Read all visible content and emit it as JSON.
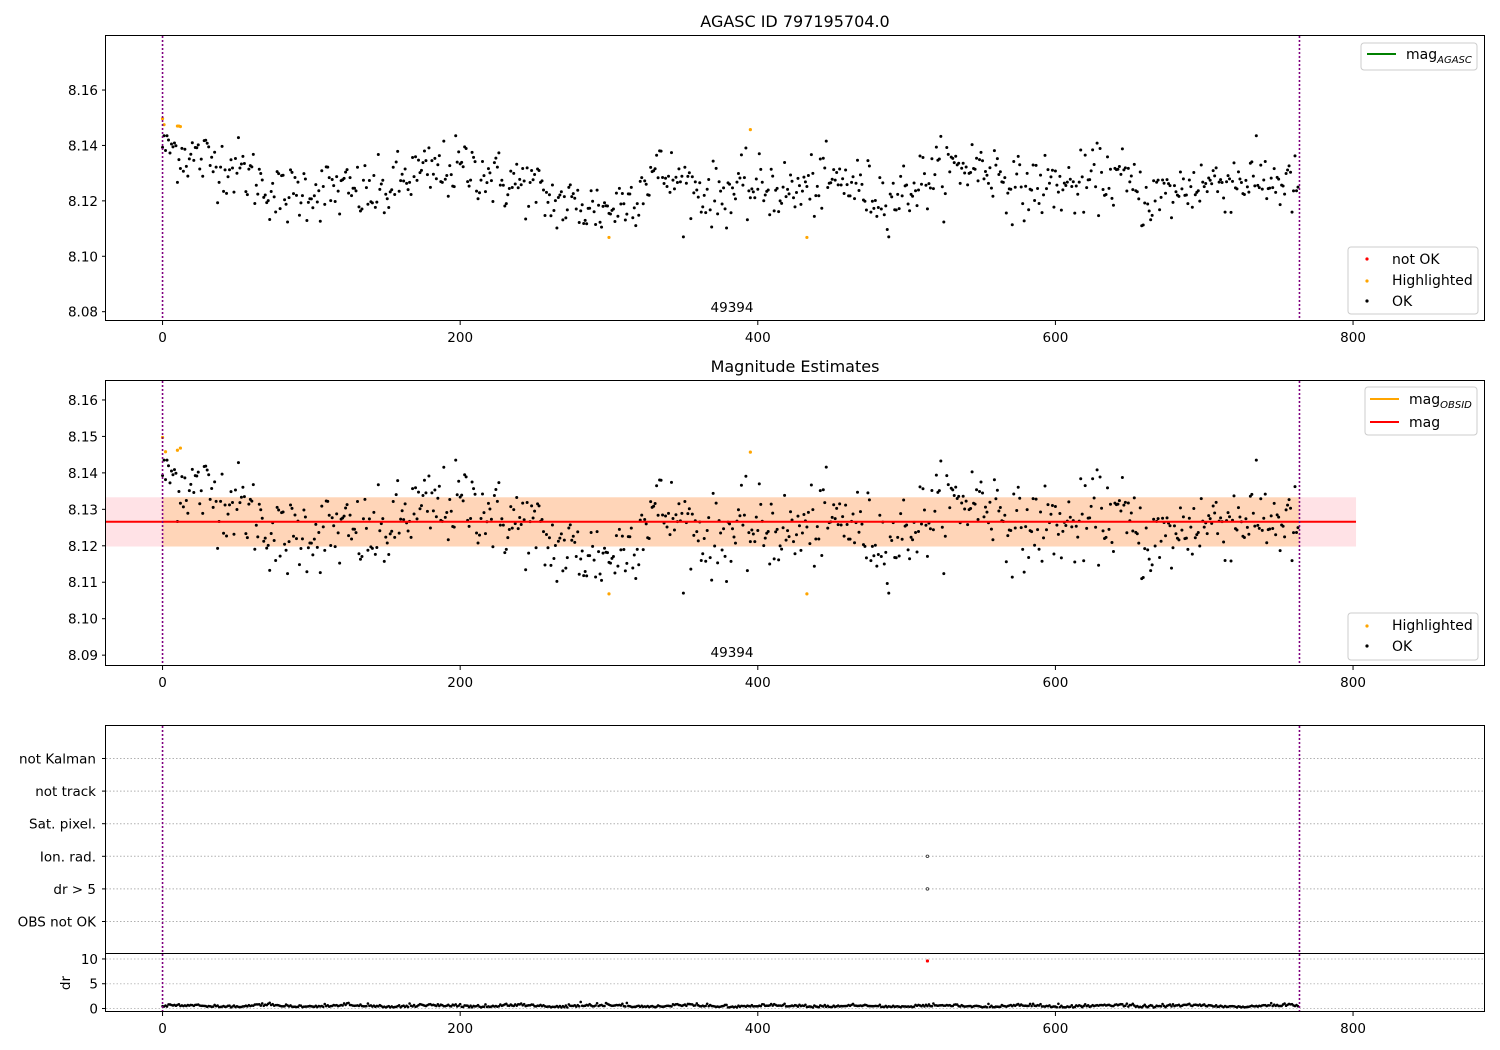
{
  "chart_data": [
    {
      "type": "scatter",
      "title": "AGASC ID 797195704.0",
      "xlim": [
        -38,
        888
      ],
      "ylim": [
        8.077,
        8.1795
      ],
      "xticks": [
        0,
        200,
        400,
        600,
        800
      ],
      "yticks": [
        8.08,
        8.1,
        8.12,
        8.14,
        8.16
      ],
      "vlines": [
        0,
        764
      ],
      "vline_color": "#800080",
      "annotation": {
        "text": "49394",
        "x": 382,
        "y": 8.08
      },
      "legend_lines": [
        {
          "label": "mag",
          "sub": "AGASC",
          "color": "#008000"
        }
      ],
      "legend_points": [
        {
          "label": "not OK",
          "color": "#ff0000"
        },
        {
          "label": "Highlighted",
          "color": "#ffa500"
        },
        {
          "label": "OK",
          "color": "#000000"
        }
      ],
      "highlighted": [
        [
          0,
          8.1497
        ],
        [
          1,
          8.1475
        ],
        [
          10,
          8.147
        ],
        [
          11,
          8.147
        ],
        [
          12,
          8.1468
        ],
        [
          300,
          8.1068
        ],
        [
          395,
          8.1457
        ],
        [
          433,
          8.1068
        ]
      ],
      "trend": [
        [
          0,
          8.141
        ],
        [
          10,
          8.138
        ],
        [
          20,
          8.136
        ],
        [
          35,
          8.134
        ],
        [
          50,
          8.132
        ],
        [
          65,
          8.127
        ],
        [
          80,
          8.121
        ],
        [
          95,
          8.124
        ],
        [
          110,
          8.124
        ],
        [
          130,
          8.123
        ],
        [
          150,
          8.123
        ],
        [
          165,
          8.129
        ],
        [
          180,
          8.13
        ],
        [
          200,
          8.132
        ],
        [
          215,
          8.131
        ],
        [
          225,
          8.127
        ],
        [
          245,
          8.126
        ],
        [
          260,
          8.12
        ],
        [
          280,
          8.118
        ],
        [
          300,
          8.117
        ],
        [
          315,
          8.121
        ],
        [
          330,
          8.131
        ],
        [
          350,
          8.126
        ],
        [
          370,
          8.122
        ],
        [
          390,
          8.124
        ],
        [
          410,
          8.125
        ],
        [
          425,
          8.123
        ],
        [
          440,
          8.126
        ],
        [
          460,
          8.127
        ],
        [
          475,
          8.123
        ],
        [
          490,
          8.121
        ],
        [
          510,
          8.127
        ],
        [
          525,
          8.131
        ],
        [
          545,
          8.133
        ],
        [
          560,
          8.131
        ],
        [
          575,
          8.124
        ],
        [
          595,
          8.126
        ],
        [
          615,
          8.125
        ],
        [
          630,
          8.129
        ],
        [
          645,
          8.128
        ],
        [
          660,
          8.121
        ],
        [
          675,
          8.122
        ],
        [
          695,
          8.126
        ],
        [
          710,
          8.127
        ],
        [
          730,
          8.128
        ],
        [
          750,
          8.127
        ],
        [
          764,
          8.124
        ]
      ],
      "n_points": 764,
      "scatter_sd": 0.0055,
      "point_color": "#000000",
      "point_size": 2.2
    },
    {
      "type": "scatter",
      "title": "Magnitude Estimates",
      "xlim": [
        -38,
        888
      ],
      "ylim": [
        8.0873,
        8.1652
      ],
      "xticks": [
        0,
        200,
        400,
        600,
        800
      ],
      "yticks": [
        8.09,
        8.1,
        8.11,
        8.12,
        8.13,
        8.14,
        8.15,
        8.16
      ],
      "vlines": [
        0,
        764
      ],
      "vline_color": "#800080",
      "annotation": {
        "text": "49394",
        "x": 382,
        "y": 8.0898
      },
      "legend_lines": [
        {
          "label": "mag",
          "sub": "OBSID",
          "color": "#ffa500"
        },
        {
          "label": "mag",
          "sub": "",
          "color": "#ff0000"
        }
      ],
      "legend_points": [
        {
          "label": "Highlighted",
          "color": "#ffa500"
        },
        {
          "label": "OK",
          "color": "#000000"
        }
      ],
      "mag_line": {
        "x": [
          -38,
          802
        ],
        "y": 8.1266,
        "color": "#ff0000"
      },
      "mag_band": {
        "x": [
          -38,
          802
        ],
        "y": [
          8.1198,
          8.1333
        ],
        "color": "#ffb6c1"
      },
      "obsid_band": {
        "x": [
          0,
          764
        ],
        "y": [
          8.1198,
          8.1333
        ],
        "color": "#ffa500"
      },
      "highlighted": [
        [
          0,
          8.1497
        ],
        [
          2,
          8.1458
        ],
        [
          10,
          8.1462
        ],
        [
          12,
          8.1468
        ],
        [
          300,
          8.1068
        ],
        [
          395,
          8.1457
        ],
        [
          433,
          8.1068
        ]
      ],
      "n_points": 764,
      "point_color": "#000000",
      "point_size": 2.2
    },
    {
      "type": "scatter",
      "title": "",
      "xlim": [
        -38,
        888
      ],
      "category_rows": [
        "not Kalman",
        "not track",
        "Sat. pixel.",
        "Ion. rad.",
        "dr > 5",
        "OBS not OK"
      ],
      "flag_points": [
        {
          "row": "Ion. rad.",
          "x": 514
        },
        {
          "row": "dr > 5",
          "x": 514
        }
      ],
      "vlines": [
        0,
        764
      ],
      "vline_color": "#800080"
    },
    {
      "type": "scatter",
      "title": "",
      "xlim": [
        -38,
        888
      ],
      "ylim": [
        -0.5,
        11
      ],
      "xticks": [
        0,
        200,
        400,
        600,
        800
      ],
      "yticks": [
        0,
        5,
        10
      ],
      "ylabel": "dr",
      "outlier": {
        "x": 514,
        "y": 9.6,
        "color": "#ff0000"
      },
      "baseline": 0.35,
      "vlines": [
        0,
        764
      ],
      "vline_color": "#800080"
    }
  ]
}
